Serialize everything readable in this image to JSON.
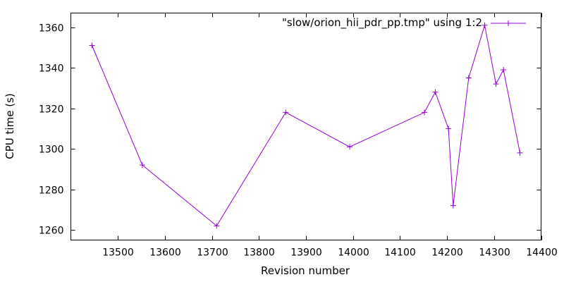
{
  "chart_data": {
    "type": "line",
    "xlabel": "Revision number",
    "ylabel": "CPU time (s)",
    "xlim": [
      13400,
      14400
    ],
    "ylim": [
      1255,
      1367
    ],
    "xticks": [
      13500,
      13600,
      13700,
      13800,
      13900,
      14000,
      14100,
      14200,
      14300,
      14400
    ],
    "yticks": [
      1260,
      1280,
      1300,
      1320,
      1340,
      1360
    ],
    "grid": false,
    "legend_position": "top-right",
    "series": [
      {
        "name": "\"slow/orion_hii_pdr_pp.tmp\" using 1:2",
        "color": "#9400d3",
        "marker": "plus",
        "points": [
          {
            "x": 13445,
            "y": 1351
          },
          {
            "x": 13552,
            "y": 1292
          },
          {
            "x": 13710,
            "y": 1262
          },
          {
            "x": 13857,
            "y": 1318
          },
          {
            "x": 13993,
            "y": 1301
          },
          {
            "x": 14152,
            "y": 1318
          },
          {
            "x": 14175,
            "y": 1328
          },
          {
            "x": 14203,
            "y": 1310
          },
          {
            "x": 14213,
            "y": 1272
          },
          {
            "x": 14246,
            "y": 1335
          },
          {
            "x": 14280,
            "y": 1361
          },
          {
            "x": 14304,
            "y": 1332
          },
          {
            "x": 14320,
            "y": 1339
          },
          {
            "x": 14355,
            "y": 1298
          }
        ]
      }
    ]
  }
}
